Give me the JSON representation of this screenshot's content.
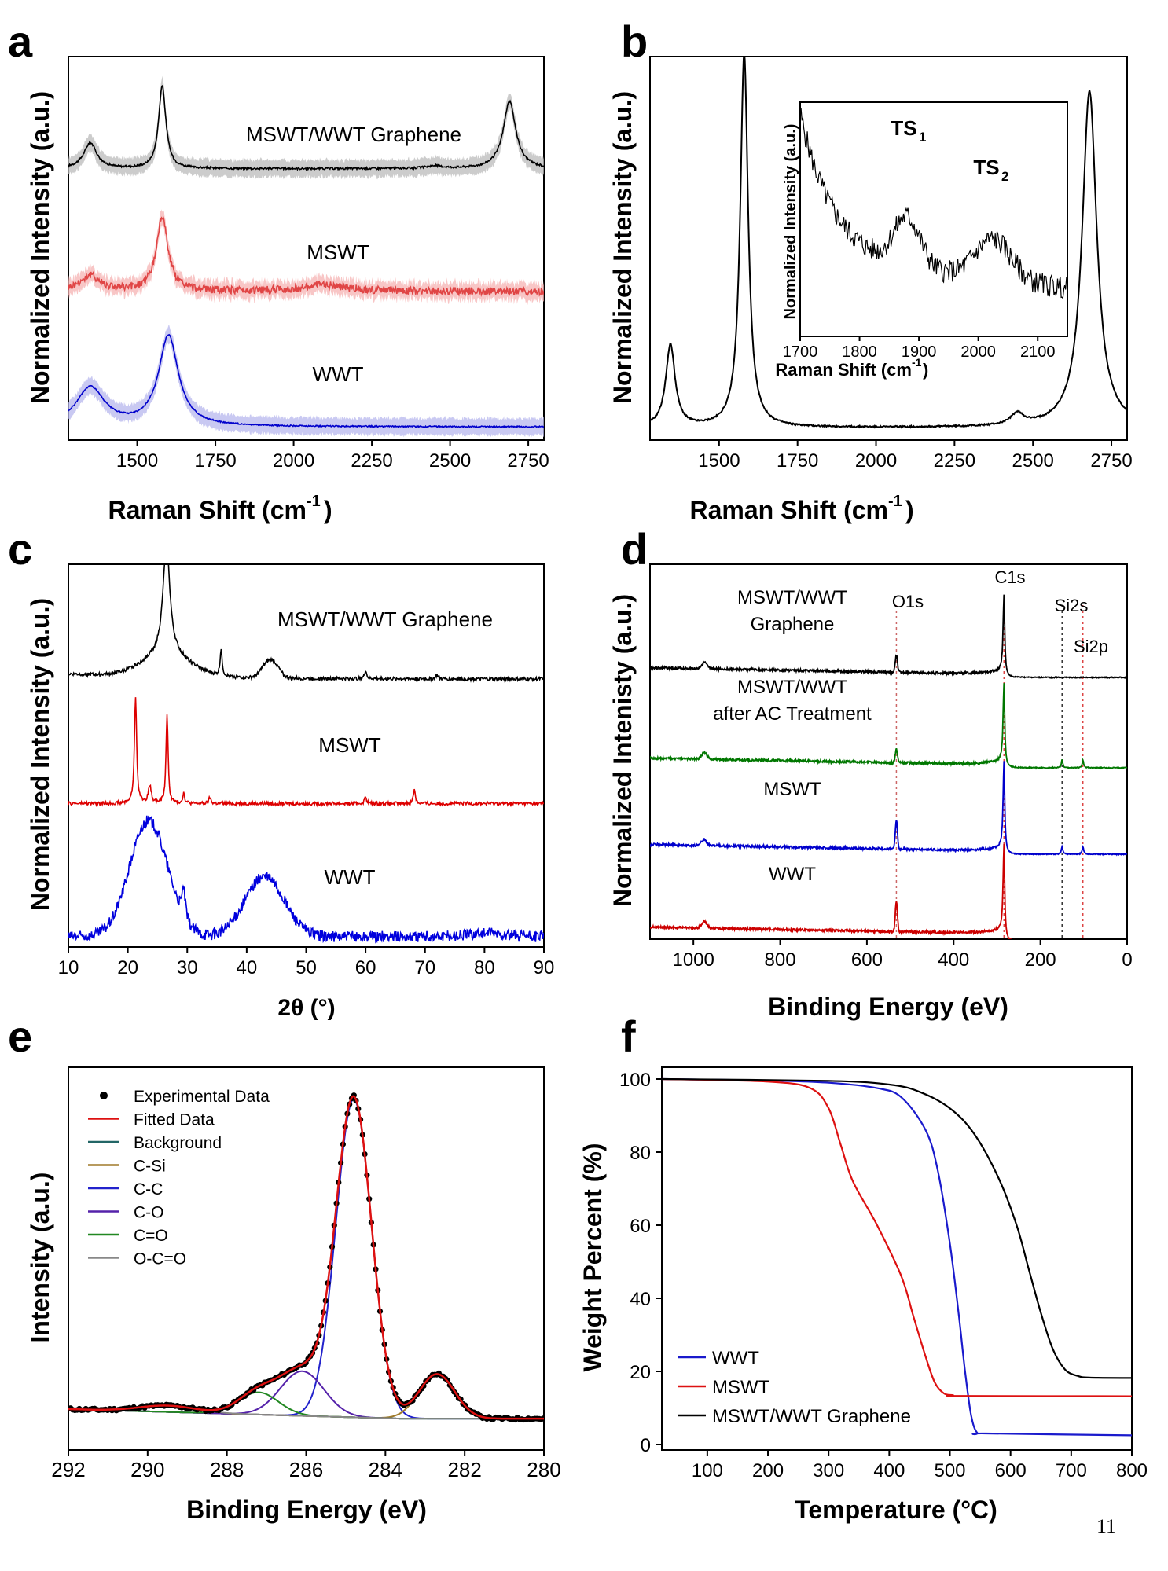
{
  "page_number": "11",
  "chart_data": [
    {
      "panel": "a",
      "type": "line",
      "xlabel": "Raman Shift (cm⁻¹)",
      "ylabel": "Normalized Intensity (a.u.)",
      "xlim": [
        1280,
        2800
      ],
      "xticks": [
        1500,
        1750,
        2000,
        2250,
        2500,
        2750
      ],
      "y_ticks_shown": false,
      "shaded_error_band": true,
      "series": [
        {
          "name": "MSWT/WWT Graphene",
          "color": "#000000",
          "band_color": "#bbbbbb",
          "offset": 2.0,
          "scale": 0.7,
          "noise": 0.008,
          "peaks": [
            {
              "x": 1350,
              "h": 0.2,
              "w": 25
            },
            {
              "x": 1580,
              "h": 0.64,
              "w": 14
            },
            {
              "x": 2450,
              "h": 0.02,
              "w": 30
            },
            {
              "x": 2690,
              "h": 0.52,
              "w": 24
            }
          ]
        },
        {
          "name": "MSWT",
          "color": "#e04545",
          "band_color": "#f5b3b3",
          "offset": 1.05,
          "scale": 0.7,
          "noise": 0.03,
          "peaks": [
            {
              "x": 1350,
              "h": 0.12,
              "w": 40
            },
            {
              "x": 1580,
              "h": 0.58,
              "w": 22
            },
            {
              "x": 2100,
              "h": 0.05,
              "w": 80
            }
          ]
        },
        {
          "name": "WWT",
          "color": "#0000cc",
          "band_color": "#b7b7ee",
          "offset": 0.0,
          "scale": 0.7,
          "noise": 0.005,
          "peaks": [
            {
              "x": 1350,
              "h": 0.3,
              "w": 55
            },
            {
              "x": 1600,
              "h": 0.7,
              "w": 38
            }
          ]
        }
      ]
    },
    {
      "panel": "b",
      "type": "line",
      "xlabel": "Raman Shift (cm⁻¹)",
      "ylabel": "Normalized Intensity (a.u.)",
      "xlim": [
        1280,
        2800
      ],
      "xticks": [
        1500,
        1750,
        2000,
        2250,
        2500,
        2750
      ],
      "series": [
        {
          "name": "spectrum",
          "color": "#000000",
          "peaks": [
            {
              "x": 1345,
              "h": 0.22,
              "w": 18
            },
            {
              "x": 1580,
              "h": 1.0,
              "w": 15
            },
            {
              "x": 2450,
              "h": 0.03,
              "w": 25
            },
            {
              "x": 2680,
              "h": 0.9,
              "w": 28
            }
          ]
        }
      ],
      "inset": {
        "xlabel": "Raman Shift (cm⁻¹)",
        "ylabel": "Normalized Intensity (a.u.)",
        "xlim": [
          1700,
          2150
        ],
        "xticks": [
          1700,
          1800,
          1900,
          2000,
          2100
        ],
        "annotations": [
          "TS₁",
          "TS₂"
        ],
        "peaks": [
          {
            "x": 1880,
            "label": "TS₁"
          },
          {
            "x": 2025,
            "label": "TS₂"
          }
        ]
      }
    },
    {
      "panel": "c",
      "type": "line",
      "xlabel": "2θ (°)",
      "ylabel": "Normalized Intensity (a.u.)",
      "xlim": [
        10,
        90
      ],
      "xticks": [
        10,
        20,
        30,
        40,
        50,
        60,
        70,
        80,
        90
      ],
      "series": [
        {
          "name": "MSWT/WWT Graphene",
          "color": "#000000",
          "offset": 3.0,
          "peaks": [
            {
              "x": 26.5,
              "h": 1.3,
              "w": 0.7
            },
            {
              "x": 35.7,
              "h": 0.32,
              "w": 0.2
            },
            {
              "x": 43.2,
              "h": 0.12,
              "w": 1.0
            },
            {
              "x": 44.6,
              "h": 0.15,
              "w": 1.0
            },
            {
              "x": 60,
              "h": 0.1,
              "w": 0.2
            },
            {
              "x": 72,
              "h": 0.05,
              "w": 0.2
            }
          ]
        },
        {
          "name": "MSWT",
          "color": "#dd0000",
          "offset": 1.55,
          "peaks": [
            {
              "x": 21.3,
              "h": 1.25,
              "w": 0.22
            },
            {
              "x": 23.7,
              "h": 0.2,
              "w": 0.3
            },
            {
              "x": 26.6,
              "h": 1.05,
              "w": 0.2
            },
            {
              "x": 29.4,
              "h": 0.12,
              "w": 0.2
            },
            {
              "x": 33.8,
              "h": 0.07,
              "w": 0.2
            },
            {
              "x": 60,
              "h": 0.08,
              "w": 0.2
            },
            {
              "x": 68.2,
              "h": 0.17,
              "w": 0.2
            }
          ]
        },
        {
          "name": "WWT",
          "color": "#0000dd",
          "offset": 0.0,
          "peaks": [
            {
              "x": 23.5,
              "h": 1.35,
              "w": 3.2
            },
            {
              "x": 29.4,
              "h": 0.35,
              "w": 0.3
            },
            {
              "x": 43,
              "h": 0.7,
              "w": 3.3
            },
            {
              "x": 80,
              "h": 0.04,
              "w": 3.0
            }
          ]
        }
      ]
    },
    {
      "panel": "d",
      "type": "line",
      "xlabel": "Binding Energy (eV)",
      "ylabel": "Normalized Intenisty (a.u.)",
      "xlim": [
        1100,
        0
      ],
      "xticks": [
        1000,
        800,
        600,
        400,
        200,
        0
      ],
      "annotations": [
        "O1s",
        "C1s",
        "Si2s",
        "Si2p"
      ],
      "reference_lines": [
        {
          "x": 532,
          "label": "O1s"
        },
        {
          "x": 284,
          "label": "C1s"
        },
        {
          "x": 150,
          "label": "Si2s"
        },
        {
          "x": 102,
          "label": "Si2p"
        }
      ],
      "series": [
        {
          "name": "MSWT/WWT Graphene",
          "label_lines": [
            "MSWT/WWT",
            "Graphene"
          ],
          "color": "#000000",
          "offset": 3.0
        },
        {
          "name": "MSWT/WWT after AC Treatment",
          "label_lines": [
            "MSWT/WWT",
            "after AC Treatment"
          ],
          "color": "#007700",
          "offset": 2.0
        },
        {
          "name": "MSWT",
          "label_lines": [
            "MSWT"
          ],
          "color": "#0000cc",
          "offset": 1.0
        },
        {
          "name": "WWT",
          "label_lines": [
            "WWT"
          ],
          "color": "#cc0000",
          "offset": 0.0
        }
      ]
    },
    {
      "panel": "e",
      "type": "line",
      "xlabel": "Binding Energy (eV)",
      "ylabel": "Intensity (a.u.)",
      "xlim": [
        292,
        280
      ],
      "xticks": [
        292,
        290,
        288,
        286,
        284,
        282,
        280
      ],
      "legend": [
        "Experimental Data",
        "Fitted Data",
        "Background",
        "C-Si",
        "C-C",
        "C-O",
        "C=O",
        "O-C=O"
      ],
      "legend_position": "top-left",
      "components": [
        {
          "name": "C-C",
          "center": 284.8,
          "height": 1.0,
          "width": 0.45,
          "color": "#2222cc"
        },
        {
          "name": "C-Si",
          "center": 282.7,
          "height": 0.14,
          "width": 0.45,
          "color": "#a07a2a"
        },
        {
          "name": "C-O",
          "center": 286.1,
          "height": 0.14,
          "width": 0.55,
          "color": "#5522aa"
        },
        {
          "name": "C=O",
          "center": 287.2,
          "height": 0.07,
          "width": 0.5,
          "color": "#228822"
        },
        {
          "name": "O-C=O",
          "center": 289.5,
          "height": 0.02,
          "width": 0.7,
          "color": "#888888"
        }
      ],
      "colors": {
        "experimental": "#000000",
        "fitted": "#dd1111",
        "background": "#226666"
      }
    },
    {
      "panel": "f",
      "type": "line",
      "xlabel": "Temperature (°C)",
      "ylabel": "Weight Percent (%)",
      "xlim": [
        25,
        800
      ],
      "ylim": [
        0,
        100
      ],
      "xticks": [
        100,
        200,
        300,
        400,
        500,
        600,
        700,
        800
      ],
      "yticks": [
        0,
        20,
        40,
        60,
        80,
        100
      ],
      "legend_position": "bottom-left",
      "series": [
        {
          "name": "WWT",
          "color": "#1a1acc",
          "x": [
            25,
            200,
            300,
            380,
            420,
            460,
            480,
            500,
            515,
            525,
            535,
            545,
            560,
            800
          ],
          "y": [
            100,
            99.6,
            99,
            97.5,
            95,
            86,
            75,
            55,
            35,
            20,
            8,
            3.2,
            3,
            2.5
          ]
        },
        {
          "name": "MSWT",
          "color": "#dd1111",
          "x": [
            25,
            200,
            270,
            300,
            320,
            340,
            380,
            420,
            440,
            460,
            475,
            490,
            505,
            520,
            800
          ],
          "y": [
            100,
            99.3,
            97.5,
            92,
            82,
            72,
            60,
            46,
            35,
            24,
            17,
            14,
            13.5,
            13.3,
            13.2
          ]
        },
        {
          "name": "MSWT/WWT Graphene",
          "color": "#000000",
          "x": [
            25,
            300,
            400,
            450,
            500,
            540,
            580,
            610,
            630,
            650,
            670,
            690,
            710,
            730,
            800
          ],
          "y": [
            100,
            99.5,
            98.5,
            96.5,
            92,
            85,
            73,
            60,
            48,
            36,
            26,
            20.5,
            18.8,
            18.3,
            18.2
          ]
        }
      ]
    }
  ]
}
